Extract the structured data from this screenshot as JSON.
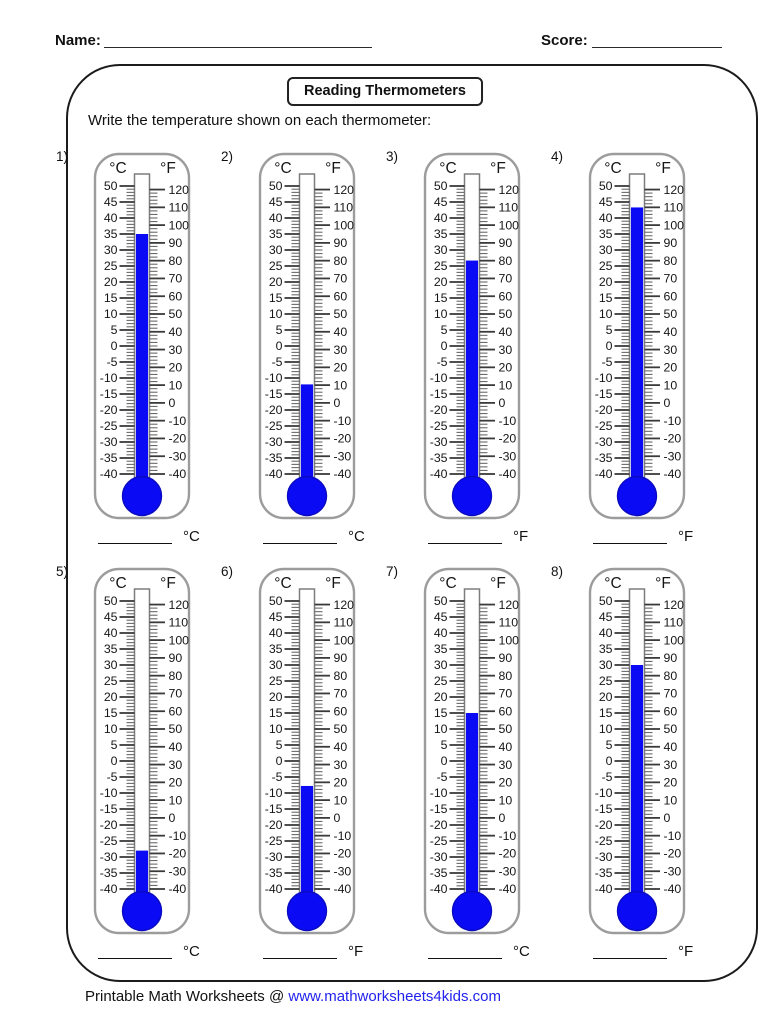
{
  "header": {
    "name_label": "Name:",
    "score_label": "Score:"
  },
  "title": "Reading Thermometers",
  "instruction": "Write the temperature shown on each thermometer:",
  "footer": {
    "prefix": "Printable Math Worksheets @ ",
    "link": "www.mathworksheets4kids.com"
  },
  "colors": {
    "mercury": "#0a0af5",
    "bulb_outline": "#0a0ac0",
    "link": "#2222ee"
  },
  "scale": {
    "celsius_header": "°C",
    "fahrenheit_header": "°F",
    "c_max": 50,
    "c_min": -40,
    "c_major_step": 5,
    "c_minor_step": 1,
    "f_max": 120,
    "f_min": -40,
    "f_major_step": 10,
    "f_minor_step": 2,
    "c_tick_labels": [
      50,
      45,
      40,
      35,
      30,
      25,
      20,
      15,
      10,
      5,
      0,
      -5,
      -10,
      -15,
      -20,
      -25,
      -30,
      -35,
      -40
    ],
    "f_tick_labels": [
      120,
      110,
      100,
      90,
      80,
      70,
      60,
      50,
      40,
      30,
      20,
      10,
      0,
      -10,
      -20,
      -30,
      -40
    ]
  },
  "thermometers": [
    {
      "number": "1)",
      "mercury_c": 35,
      "mercury_f": 95,
      "answer_unit": "°C"
    },
    {
      "number": "2)",
      "mercury_c": -12,
      "mercury_f": 10,
      "answer_unit": "°C"
    },
    {
      "number": "3)",
      "mercury_c": 26.7,
      "mercury_f": 80,
      "answer_unit": "°F"
    },
    {
      "number": "4)",
      "mercury_c": 43.3,
      "mercury_f": 110,
      "answer_unit": "°F"
    },
    {
      "number": "5)",
      "mercury_c": -28,
      "mercury_f": -18,
      "answer_unit": "°C"
    },
    {
      "number": "6)",
      "mercury_c": -7.8,
      "mercury_f": 18,
      "answer_unit": "°F"
    },
    {
      "number": "7)",
      "mercury_c": 15,
      "mercury_f": 59,
      "answer_unit": "°C"
    },
    {
      "number": "8)",
      "mercury_c": 30,
      "mercury_f": 86,
      "answer_unit": "°F"
    }
  ]
}
